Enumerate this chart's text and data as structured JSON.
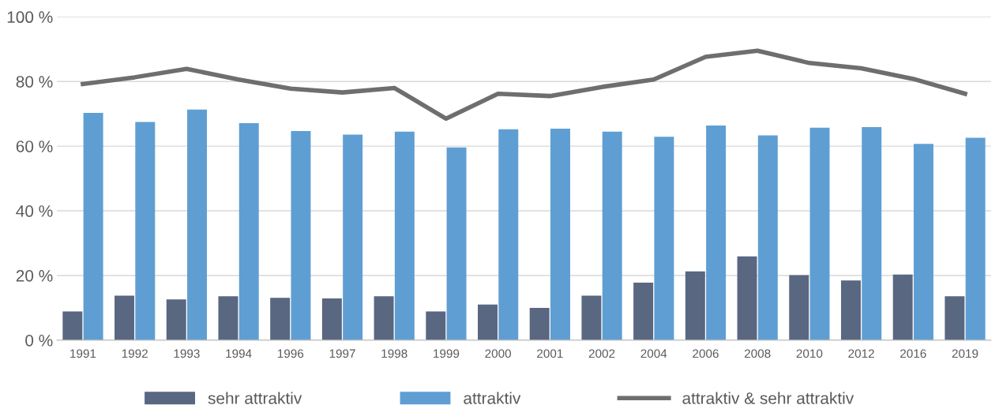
{
  "chart_data": {
    "type": "bar",
    "categories": [
      "1991",
      "1992",
      "1993",
      "1994",
      "1996",
      "1997",
      "1998",
      "1999",
      "2000",
      "2001",
      "2002",
      "2004",
      "2006",
      "2008",
      "2010",
      "2012",
      "2016",
      "2019"
    ],
    "series": [
      {
        "name": "sehr attraktiv",
        "color": "#596781",
        "values": [
          8.9,
          13.8,
          12.6,
          13.6,
          13.1,
          12.9,
          13.6,
          8.9,
          11.0,
          10.0,
          13.8,
          17.8,
          21.3,
          25.9,
          20.1,
          18.5,
          20.3,
          13.6
        ]
      },
      {
        "name": "attraktiv",
        "color": "#5f9ed3",
        "values": [
          70.3,
          67.5,
          71.3,
          67.1,
          64.7,
          63.6,
          64.5,
          59.6,
          65.2,
          65.4,
          64.5,
          62.9,
          66.4,
          63.3,
          65.7,
          65.9,
          60.7,
          62.6
        ]
      },
      {
        "name": "attraktiv & sehr attraktiv",
        "type": "line",
        "color": "#6e6e6e",
        "values": [
          79.2,
          81.3,
          83.9,
          80.6,
          77.8,
          76.6,
          78.0,
          68.5,
          76.2,
          75.5,
          78.3,
          80.6,
          87.6,
          89.5,
          85.7,
          84.1,
          80.8,
          76.2
        ]
      }
    ],
    "ylim": [
      0,
      100
    ],
    "yticks": [
      {
        "value": 0,
        "label": "0 %"
      },
      {
        "value": 20,
        "label": "20 %"
      },
      {
        "value": 40,
        "label": "40 %"
      },
      {
        "value": 60,
        "label": "60 %"
      },
      {
        "value": 80,
        "label": "80 %"
      },
      {
        "value": 100,
        "label": "100 %"
      }
    ],
    "grid": "y",
    "legend": "bottom",
    "marker": "none",
    "line_style": "solid"
  }
}
